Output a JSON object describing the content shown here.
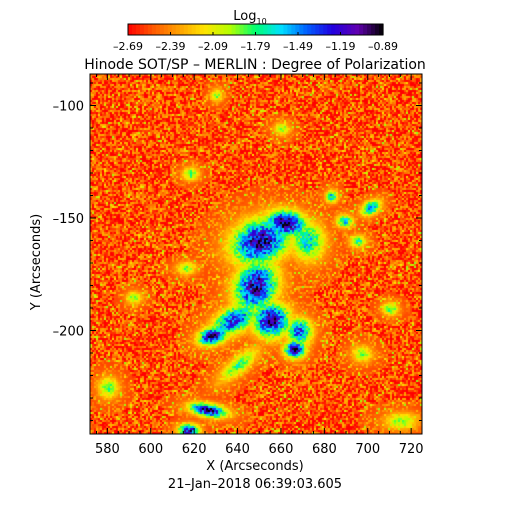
{
  "chart_data": {
    "type": "heatmap",
    "title": "Hinode SOT/SP – MERLIN : Degree of Polarization",
    "xlabel": "X (Arcseconds)",
    "ylabel": "Y (Arcseconds)",
    "footer": "21–Jan–2018 06:39:03.605",
    "xlim": [
      572,
      725
    ],
    "ylim": [
      -246,
      -86
    ],
    "x_ticks": [
      580,
      600,
      620,
      640,
      660,
      680,
      700,
      720
    ],
    "x_tick_labels": [
      "580",
      "600",
      "620",
      "640",
      "660",
      "680",
      "700",
      "720"
    ],
    "y_ticks": [
      -100,
      -150,
      -200
    ],
    "y_tick_labels": [
      "–100",
      "–150",
      "–200"
    ],
    "colorbar": {
      "label_main": "Log",
      "label_sub": "10",
      "range": [
        -2.69,
        -0.89
      ],
      "ticks": [
        -2.69,
        -2.39,
        -2.09,
        -1.79,
        -1.49,
        -1.19,
        -0.89
      ],
      "tick_labels": [
        "–2.69",
        "–2.39",
        "–2.09",
        "–1.79",
        "–1.49",
        "–1.19",
        "–0.89"
      ],
      "colormap": [
        "#ff0000",
        "#ff5a00",
        "#ffa000",
        "#ffe400",
        "#b4ff00",
        "#00ff70",
        "#00e0ff",
        "#0060ff",
        "#2000e0",
        "#6000b0",
        "#000000"
      ]
    },
    "background_level": -2.55,
    "features": [
      {
        "x": 650,
        "y": -160,
        "rx": 14,
        "ry": 10,
        "peak": -1.05,
        "rot": -20
      },
      {
        "x": 662,
        "y": -152,
        "rx": 10,
        "ry": 6,
        "peak": -1.0,
        "rot": 10
      },
      {
        "x": 672,
        "y": -160,
        "rx": 8,
        "ry": 9,
        "peak": -1.6,
        "rot": 0
      },
      {
        "x": 648,
        "y": -180,
        "rx": 10,
        "ry": 12,
        "peak": -1.1,
        "rot": 20
      },
      {
        "x": 655,
        "y": -195,
        "rx": 9,
        "ry": 8,
        "peak": -1.05,
        "rot": 0
      },
      {
        "x": 638,
        "y": -195,
        "rx": 12,
        "ry": 6,
        "peak": -1.3,
        "rot": -30
      },
      {
        "x": 628,
        "y": -202,
        "rx": 7,
        "ry": 4,
        "peak": -1.0,
        "rot": -15
      },
      {
        "x": 668,
        "y": -200,
        "rx": 6,
        "ry": 6,
        "peak": -1.3,
        "rot": 0
      },
      {
        "x": 666,
        "y": -208,
        "rx": 5,
        "ry": 4,
        "peak": -1.0,
        "rot": 0
      },
      {
        "x": 640,
        "y": -215,
        "rx": 12,
        "ry": 4,
        "peak": -1.8,
        "rot": -40
      },
      {
        "x": 626,
        "y": -235,
        "rx": 9,
        "ry": 3,
        "peak": -1.05,
        "rot": 10
      },
      {
        "x": 617,
        "y": -244,
        "rx": 5,
        "ry": 3,
        "peak": -1.15,
        "rot": 0
      },
      {
        "x": 701,
        "y": -145,
        "rx": 5,
        "ry": 3,
        "peak": -1.4,
        "rot": -30
      },
      {
        "x": 689,
        "y": -151,
        "rx": 4,
        "ry": 3,
        "peak": -1.6,
        "rot": 0
      },
      {
        "x": 683,
        "y": -140,
        "rx": 3,
        "ry": 3,
        "peak": -1.6,
        "rot": 0
      },
      {
        "x": 618,
        "y": -130,
        "rx": 4,
        "ry": 3,
        "peak": -1.8,
        "rot": 0
      },
      {
        "x": 616,
        "y": -172,
        "rx": 5,
        "ry": 3,
        "peak": -1.9,
        "rot": 0
      },
      {
        "x": 697,
        "y": -210,
        "rx": 5,
        "ry": 4,
        "peak": -1.9,
        "rot": 0
      },
      {
        "x": 715,
        "y": -240,
        "rx": 8,
        "ry": 4,
        "peak": -1.9,
        "rot": 0
      },
      {
        "x": 710,
        "y": -190,
        "rx": 4,
        "ry": 3,
        "peak": -1.8,
        "rot": 0
      },
      {
        "x": 695,
        "y": -160,
        "rx": 4,
        "ry": 3,
        "peak": -1.75,
        "rot": 0
      },
      {
        "x": 580,
        "y": -225,
        "rx": 5,
        "ry": 5,
        "peak": -1.85,
        "rot": 0
      },
      {
        "x": 592,
        "y": -185,
        "rx": 4,
        "ry": 3,
        "peak": -1.9,
        "rot": 0
      },
      {
        "x": 660,
        "y": -110,
        "rx": 4,
        "ry": 3,
        "peak": -1.9,
        "rot": 0
      },
      {
        "x": 630,
        "y": -95,
        "rx": 3,
        "ry": 3,
        "peak": -1.9,
        "rot": 0
      }
    ]
  }
}
